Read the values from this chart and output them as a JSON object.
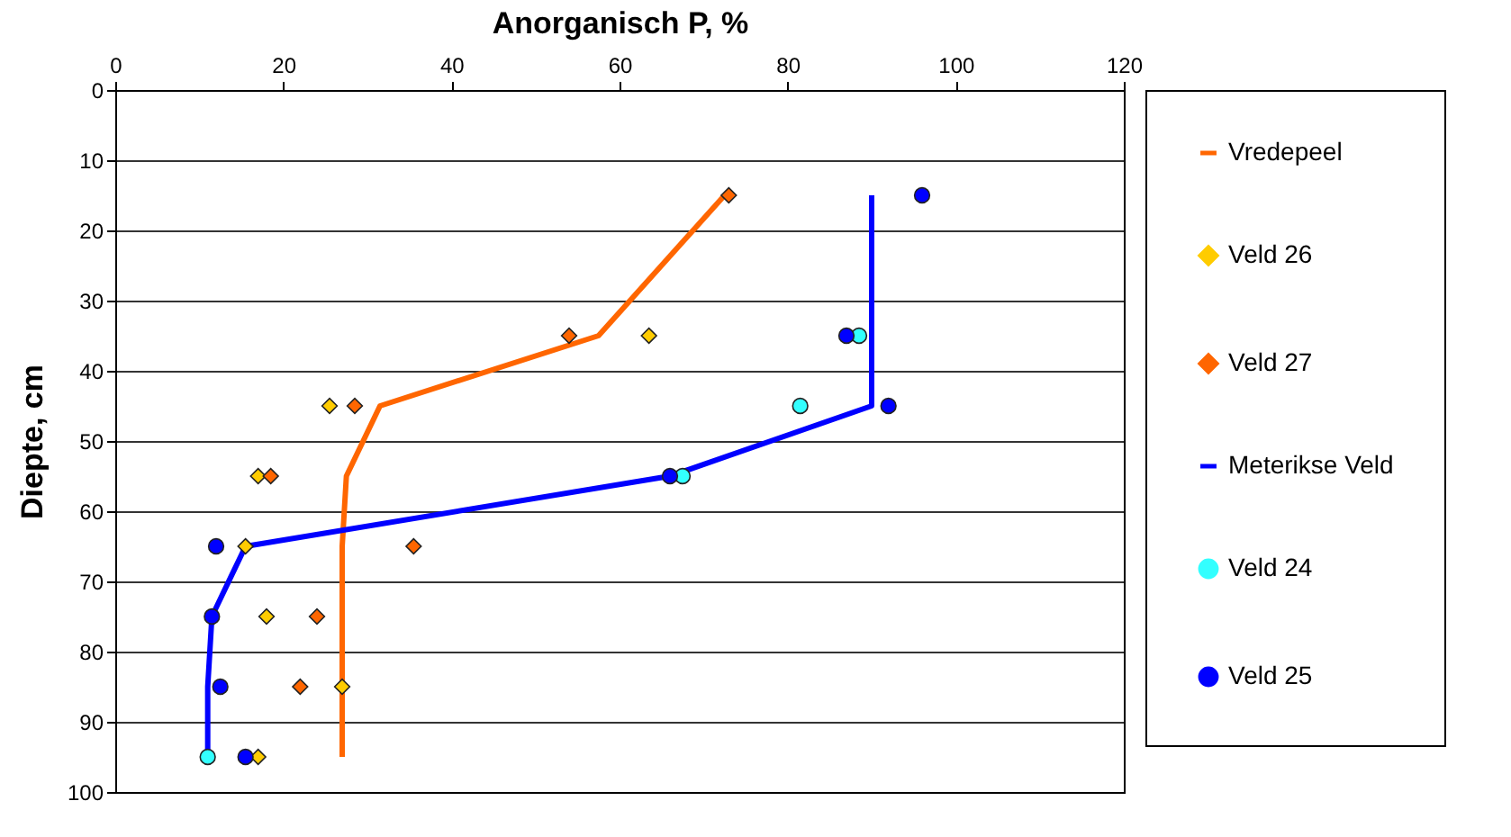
{
  "chart_data": {
    "type": "line",
    "xlabel": "Anorganisch P, %",
    "ylabel": "Diepte, cm",
    "xlim": [
      0,
      120
    ],
    "xticks": [
      0,
      20,
      40,
      60,
      80,
      100,
      120
    ],
    "ylim": [
      100,
      0
    ],
    "yticks": [
      0,
      10,
      20,
      30,
      40,
      50,
      60,
      70,
      80,
      90,
      100
    ],
    "grid": "y",
    "legend": "right",
    "series": [
      {
        "name": "Vredepeel",
        "type": "line",
        "marker": "none",
        "color": "#ff6600",
        "x": [
          72.5,
          57.5,
          31.5,
          27.5,
          27,
          27,
          27,
          27
        ],
        "values": [
          15,
          35,
          45,
          55,
          65,
          75,
          85,
          95
        ]
      },
      {
        "name": "Veld 26",
        "type": "scatter",
        "marker": "diamond",
        "color": "#ffcc00",
        "x": [
          63.5,
          25.5,
          17,
          15.5,
          18,
          27,
          17
        ],
        "values": [
          35,
          45,
          55,
          65,
          75,
          85,
          95
        ]
      },
      {
        "name": "Veld 27",
        "type": "scatter",
        "marker": "diamond",
        "color": "#ff6600",
        "x": [
          73,
          54,
          28.5,
          18.5,
          35.5,
          24,
          22
        ],
        "values": [
          15,
          35,
          45,
          55,
          65,
          75,
          85
        ]
      },
      {
        "name": "Meterikse Veld",
        "type": "line",
        "marker": "none",
        "color": "#0000ff",
        "x": [
          90,
          90,
          90,
          66,
          15.5,
          11.5,
          11,
          11
        ],
        "values": [
          15,
          35,
          45,
          55,
          65,
          75,
          85,
          95
        ]
      },
      {
        "name": "Veld 24",
        "type": "scatter",
        "marker": "circle",
        "color": "#33ffff",
        "x": [
          88.5,
          81.5,
          67.5,
          11
        ],
        "values": [
          35,
          45,
          55,
          95
        ]
      },
      {
        "name": "Veld 25",
        "type": "scatter",
        "marker": "circle",
        "color": "#0000ff",
        "x": [
          96,
          87,
          92,
          66,
          12,
          11.5,
          12.5,
          15.5
        ],
        "values": [
          15,
          35,
          45,
          55,
          65,
          75,
          85,
          95
        ]
      }
    ]
  }
}
